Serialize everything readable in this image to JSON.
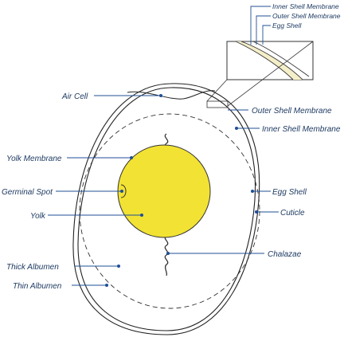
{
  "labels": {
    "inner_shell_membrane_inset": "Inner Shell Membrane",
    "outer_shell_membrane_inset": "Outer Shell Membrane",
    "egg_shell_inset": "Egg Shell",
    "air_cell": "Air Cell",
    "outer_shell_membrane": "Outer Shell Membrane",
    "inner_shell_membrane": "Inner Shell Membrane",
    "yolk_membrane": "Yolk Membrane",
    "germinal_spot": "Germinal Spot",
    "egg_shell": "Egg Shell",
    "yolk": "Yolk",
    "cuticle": "Cuticle",
    "chalazae": "Chalazae",
    "thick_albumen": "Thick Albumen",
    "thin_albumen": "Thin Albumen"
  },
  "colors": {
    "yolk": "#f2e233",
    "yolk_outline": "#333333",
    "leader_lines": "#1f4f96",
    "label_text": "#1f3b63",
    "shell_band": "#f5efc9"
  }
}
